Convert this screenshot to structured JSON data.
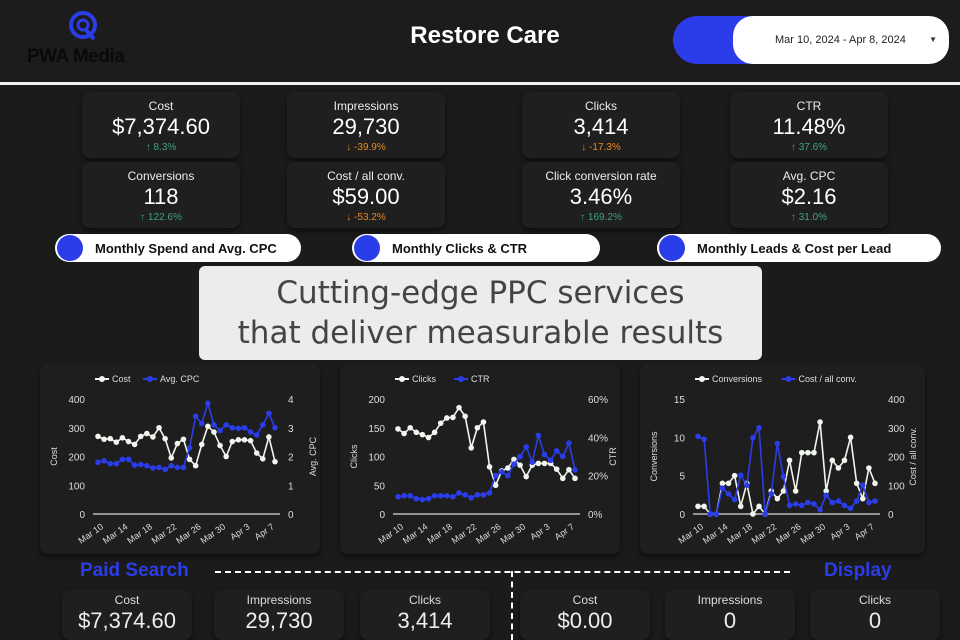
{
  "header": {
    "logo": "PWA Media",
    "title": "Restore Care",
    "date_range": "Mar 10, 2024 - Apr 8, 2024"
  },
  "kpis": [
    {
      "label": "Cost",
      "value": "$7,374.60",
      "delta": "8.3%",
      "dir": "up"
    },
    {
      "label": "Impressions",
      "value": "29,730",
      "delta": "-39.9%",
      "dir": "down"
    },
    {
      "label": "Clicks",
      "value": "3,414",
      "delta": "-17.3%",
      "dir": "down"
    },
    {
      "label": "CTR",
      "value": "11.48%",
      "delta": "37.6%",
      "dir": "up"
    },
    {
      "label": "Conversions",
      "value": "118",
      "delta": "122.6%",
      "dir": "up"
    },
    {
      "label": "Cost / all conv.",
      "value": "$59.00",
      "delta": "-53.2%",
      "dir": "down"
    },
    {
      "label": "Click conversion rate",
      "value": "3.46%",
      "delta": "169.2%",
      "dir": "up"
    },
    {
      "label": "Avg. CPC",
      "value": "$2.16",
      "delta": "31.0%",
      "dir": "up"
    }
  ],
  "tabs": [
    "Monthly Spend and Avg. CPC",
    "Monthly Clicks & CTR",
    "Monthly Leads & Cost per Lead"
  ],
  "overlay": {
    "line1": "Cutting-edge PPC services",
    "line2": "that deliver measurable results"
  },
  "colors": {
    "accent": "#2b3de8",
    "white_series": "#f0f5ee",
    "up": "#3fa37a",
    "down": "#e88a1a"
  },
  "chart_data": [
    {
      "type": "line",
      "x_ticks": [
        "Mar 10",
        "Mar 14",
        "Mar 18",
        "Mar 22",
        "Mar 26",
        "Mar 30",
        "Apr 3",
        "Apr 7"
      ],
      "ylabel": "Cost",
      "y2label": "Avg. CPC",
      "ylim": [
        0,
        400
      ],
      "y2lim": [
        0,
        4
      ],
      "yticks": [
        "0",
        "100",
        "200",
        "300",
        "400"
      ],
      "y2ticks": [
        "0",
        "1",
        "2",
        "3",
        "4"
      ],
      "series": [
        {
          "name": "Cost",
          "axis": "left",
          "values": [
            270,
            260,
            262,
            250,
            265,
            252,
            242,
            270,
            280,
            268,
            300,
            262,
            195,
            245,
            260,
            190,
            168,
            242,
            305,
            285,
            238,
            200,
            252,
            258,
            258,
            255,
            212,
            192,
            268,
            182
          ]
        },
        {
          "name": "Avg. CPC",
          "axis": "right",
          "values": [
            1.8,
            1.85,
            1.75,
            1.75,
            1.9,
            1.9,
            1.7,
            1.72,
            1.68,
            1.6,
            1.62,
            1.55,
            1.68,
            1.62,
            1.62,
            2.3,
            3.4,
            3.15,
            3.85,
            3.1,
            2.9,
            3.1,
            3.0,
            2.98,
            3.0,
            2.85,
            2.75,
            3.1,
            3.5,
            3.0
          ]
        }
      ]
    },
    {
      "type": "line",
      "x_ticks": [
        "Mar 10",
        "Mar 14",
        "Mar 18",
        "Mar 22",
        "Mar 26",
        "Mar 30",
        "Apr 3",
        "Apr 7"
      ],
      "ylabel": "Clicks",
      "y2label": "CTR",
      "ylim": [
        0,
        200
      ],
      "y2lim": [
        0,
        60
      ],
      "yticks": [
        "0",
        "50",
        "100",
        "150",
        "200"
      ],
      "y2ticks": [
        "0%",
        "20%",
        "40%",
        "60%"
      ],
      "series": [
        {
          "name": "Clicks",
          "axis": "left",
          "values": [
            148,
            140,
            150,
            142,
            138,
            133,
            142,
            158,
            167,
            168,
            185,
            170,
            115,
            150,
            160,
            82,
            50,
            75,
            80,
            95,
            85,
            65,
            85,
            88,
            88,
            88,
            78,
            62,
            77,
            62
          ]
        },
        {
          "name": "CTR",
          "axis": "right",
          "values": [
            9,
            9.5,
            9.5,
            8,
            7.5,
            8,
            9.5,
            9.5,
            9.5,
            9,
            11,
            10,
            8.5,
            10,
            10,
            11,
            20,
            22,
            20,
            26,
            30,
            35,
            27,
            41,
            31,
            28,
            33,
            30,
            37,
            23
          ]
        }
      ]
    },
    {
      "type": "line",
      "x_ticks": [
        "Mar 10",
        "Mar 14",
        "Mar 18",
        "Mar 22",
        "Mar 26",
        "Mar 30",
        "Apr 3",
        "Apr 7"
      ],
      "ylabel": "Conversions",
      "y2label": "Cost / all conv.",
      "ylim": [
        0,
        15
      ],
      "y2lim": [
        0,
        400
      ],
      "yticks": [
        "0",
        "5",
        "10",
        "15"
      ],
      "y2ticks": [
        "0",
        "100",
        "200",
        "300",
        "400"
      ],
      "series": [
        {
          "name": "Conversions",
          "axis": "left",
          "values": [
            1,
            1,
            0,
            0,
            4,
            4,
            5,
            1,
            4,
            0,
            1,
            0,
            3,
            2,
            3,
            7,
            3,
            8,
            8,
            8,
            12,
            3,
            7,
            6,
            7,
            10,
            4,
            2,
            6,
            4
          ]
        },
        {
          "name": "Cost / all conv.",
          "axis": "right",
          "values": [
            270,
            260,
            0,
            0,
            90,
            70,
            50,
            135,
            100,
            265,
            300,
            0,
            70,
            245,
            130,
            30,
            35,
            30,
            40,
            35,
            15,
            65,
            40,
            45,
            30,
            20,
            45,
            100,
            40,
            45
          ]
        }
      ]
    }
  ],
  "sections": {
    "paid_search": {
      "title": "Paid Search",
      "kpis": [
        {
          "label": "Cost",
          "value": "$7,374.60"
        },
        {
          "label": "Impressions",
          "value": "29,730"
        },
        {
          "label": "Clicks",
          "value": "3,414"
        }
      ]
    },
    "display": {
      "title": "Display",
      "kpis": [
        {
          "label": "Cost",
          "value": "$0.00"
        },
        {
          "label": "Impressions",
          "value": "0"
        },
        {
          "label": "Clicks",
          "value": "0"
        }
      ]
    }
  }
}
